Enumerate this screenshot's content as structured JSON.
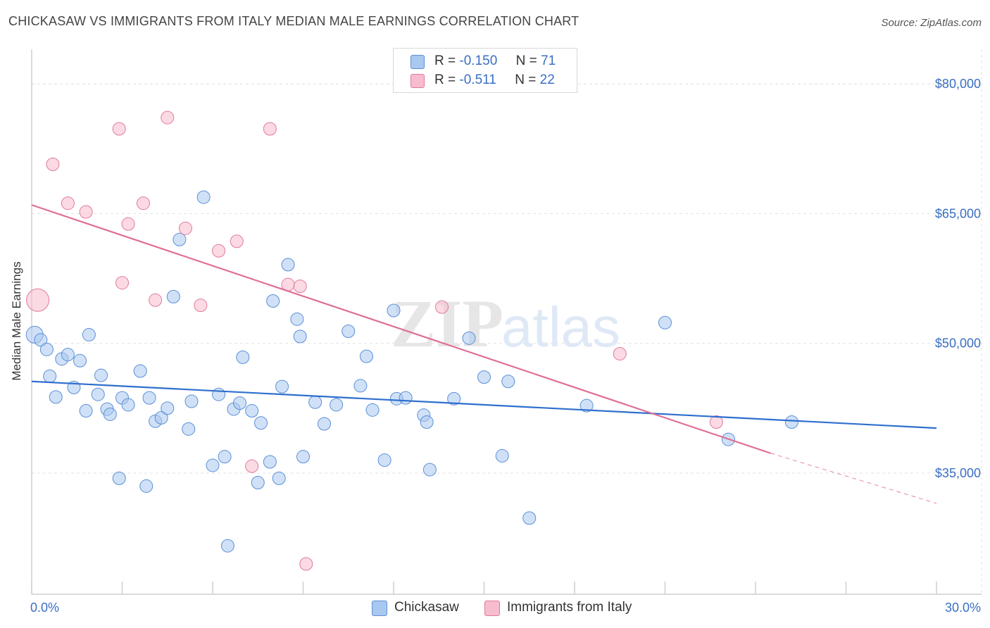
{
  "title": "CHICKASAW VS IMMIGRANTS FROM ITALY MEDIAN MALE EARNINGS CORRELATION CHART",
  "source": "Source: ZipAtlas.com",
  "watermark": {
    "zip": "ZIP",
    "atlas": "atlas"
  },
  "legend": {
    "r_label": "R =",
    "n_label": "N =",
    "entries": [
      {
        "name": "Chickasaw",
        "r": "-0.150",
        "n": "71",
        "color": "#a9c8f0",
        "stroke": "#5b8fd6"
      },
      {
        "name": "Immigrants from Italy",
        "r": "-0.511",
        "n": "22",
        "color": "#f7bccd",
        "stroke": "#e07a9b"
      }
    ]
  },
  "chart_data": {
    "type": "scatter",
    "title": "CHICKASAW VS IMMIGRANTS FROM ITALY MEDIAN MALE EARNINGS CORRELATION CHART",
    "xlabel": "",
    "ylabel": "Median Male Earnings",
    "xlim": [
      0,
      30
    ],
    "ylim": [
      21000,
      84000
    ],
    "x_tick_labels": [
      "0.0%",
      "30.0%"
    ],
    "y_ticks": [
      35000,
      50000,
      65000,
      80000
    ],
    "y_tick_labels": [
      "$35,000",
      "$50,000",
      "$65,000",
      "$80,000"
    ],
    "grid": true,
    "series": [
      {
        "name": "Chickasaw",
        "color": "#a9c8f0",
        "stroke": "#5b8fd6",
        "line_color": "#2f6fce",
        "trend": {
          "x0": 0,
          "y0": 45600,
          "x1": 30,
          "y1": 40200
        },
        "points": [
          [
            0.1,
            51000
          ],
          [
            0.3,
            50400
          ],
          [
            0.5,
            49300
          ],
          [
            0.6,
            46200
          ],
          [
            0.8,
            43800
          ],
          [
            1.0,
            48200
          ],
          [
            1.2,
            48700
          ],
          [
            1.4,
            44900
          ],
          [
            1.6,
            48000
          ],
          [
            1.8,
            42200
          ],
          [
            1.9,
            51000
          ],
          [
            2.2,
            44100
          ],
          [
            2.3,
            46300
          ],
          [
            2.5,
            42400
          ],
          [
            2.6,
            41800
          ],
          [
            2.9,
            34400
          ],
          [
            3.0,
            43700
          ],
          [
            3.2,
            42900
          ],
          [
            3.6,
            46800
          ],
          [
            3.8,
            33500
          ],
          [
            3.9,
            43700
          ],
          [
            4.1,
            41000
          ],
          [
            4.3,
            41400
          ],
          [
            4.5,
            42500
          ],
          [
            4.7,
            55400
          ],
          [
            4.9,
            62000
          ],
          [
            5.2,
            40100
          ],
          [
            5.3,
            43300
          ],
          [
            5.7,
            66900
          ],
          [
            6.0,
            35900
          ],
          [
            6.2,
            44100
          ],
          [
            6.4,
            36900
          ],
          [
            6.5,
            26600
          ],
          [
            6.7,
            42400
          ],
          [
            6.9,
            43100
          ],
          [
            7.0,
            48400
          ],
          [
            7.3,
            42200
          ],
          [
            7.5,
            33900
          ],
          [
            7.6,
            40800
          ],
          [
            7.9,
            36300
          ],
          [
            8.0,
            54900
          ],
          [
            8.2,
            34400
          ],
          [
            8.3,
            45000
          ],
          [
            8.5,
            59100
          ],
          [
            8.8,
            52800
          ],
          [
            8.9,
            50800
          ],
          [
            9.0,
            36900
          ],
          [
            9.4,
            43200
          ],
          [
            9.7,
            40700
          ],
          [
            10.1,
            42900
          ],
          [
            10.5,
            51400
          ],
          [
            10.9,
            45100
          ],
          [
            11.1,
            48500
          ],
          [
            11.3,
            42300
          ],
          [
            11.7,
            36500
          ],
          [
            12.0,
            53800
          ],
          [
            12.1,
            43600
          ],
          [
            12.4,
            43700
          ],
          [
            13.0,
            41700
          ],
          [
            13.1,
            40900
          ],
          [
            13.2,
            35400
          ],
          [
            14.5,
            50600
          ],
          [
            15.0,
            46100
          ],
          [
            15.6,
            37000
          ],
          [
            15.8,
            45600
          ],
          [
            16.5,
            29800
          ],
          [
            18.4,
            42800
          ],
          [
            21.0,
            52400
          ],
          [
            23.1,
            38900
          ],
          [
            25.2,
            40900
          ],
          [
            14.0,
            43600
          ]
        ]
      },
      {
        "name": "Immigrants from Italy",
        "color": "#f7bccd",
        "stroke": "#e07a9b",
        "line_color": "#e06f95",
        "trend": {
          "x0": 0,
          "y0": 66000,
          "x1": 24.5,
          "y1": 37300
        },
        "trend_ext": {
          "x0": 24.5,
          "y0": 37300,
          "x1": 30,
          "y1": 31500
        },
        "points": [
          [
            0.2,
            55000
          ],
          [
            0.7,
            70700
          ],
          [
            1.2,
            66200
          ],
          [
            1.8,
            65200
          ],
          [
            2.9,
            74800
          ],
          [
            3.2,
            63800
          ],
          [
            3.7,
            66200
          ],
          [
            4.1,
            55000
          ],
          [
            4.5,
            76100
          ],
          [
            5.1,
            63300
          ],
          [
            5.6,
            54400
          ],
          [
            6.2,
            60700
          ],
          [
            6.8,
            61800
          ],
          [
            7.3,
            35800
          ],
          [
            7.9,
            74800
          ],
          [
            8.5,
            56800
          ],
          [
            8.9,
            56600
          ],
          [
            9.1,
            24500
          ],
          [
            13.6,
            54200
          ],
          [
            19.5,
            48800
          ],
          [
            22.7,
            40900
          ],
          [
            3.0,
            57000
          ]
        ]
      }
    ]
  }
}
